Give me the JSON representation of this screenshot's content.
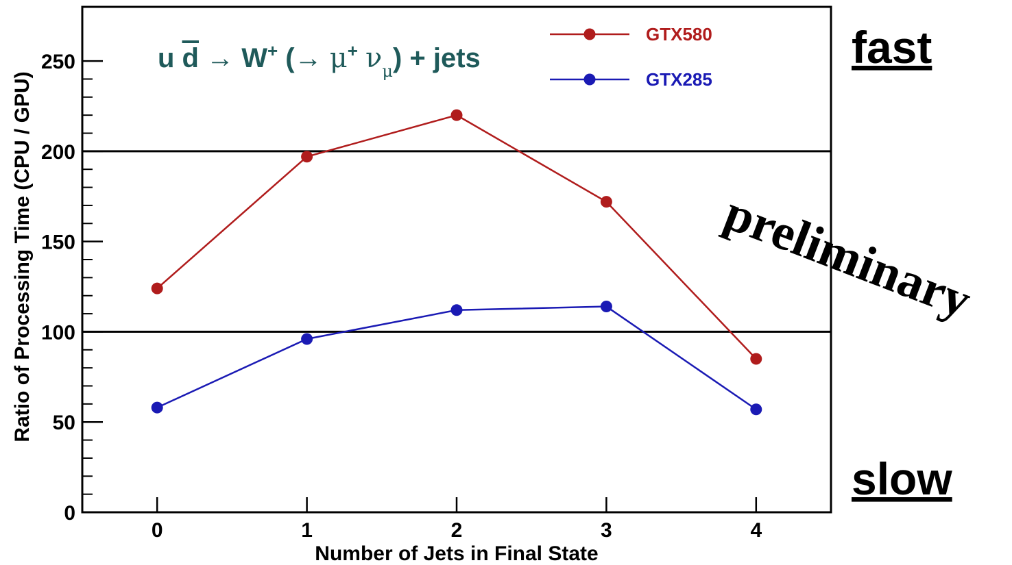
{
  "chart_data": {
    "type": "line",
    "title": {
      "parts": [
        {
          "text": "u ",
          "style": "normal"
        },
        {
          "text": "d",
          "style": "overline"
        },
        {
          "text": " → W",
          "style": "normal"
        },
        {
          "text": "+",
          "style": "sup"
        },
        {
          "text": " (→ ",
          "style": "normal"
        },
        {
          "text": "μ",
          "style": "greek"
        },
        {
          "text": "+",
          "style": "sup"
        },
        {
          "text": " ",
          "style": "normal"
        },
        {
          "text": "ν",
          "style": "greek"
        },
        {
          "text": "μ",
          "style": "sub-greek"
        },
        {
          "text": ") + jets",
          "style": "normal"
        }
      ]
    },
    "xlabel": "Number of Jets in Final State",
    "ylabel": "Ratio of Processing Time (CPU / GPU)",
    "x": [
      0,
      1,
      2,
      3,
      4
    ],
    "x_ticks": [
      "0",
      "1",
      "2",
      "3",
      "4"
    ],
    "xlim": [
      -0.5,
      4.5
    ],
    "ylim": [
      0,
      280
    ],
    "y_ticks": [
      "0",
      "50",
      "100",
      "150",
      "200",
      "250"
    ],
    "reference_lines": [
      100,
      200
    ],
    "series": [
      {
        "name": "GTX580",
        "color": "#b01c1c",
        "values": [
          124,
          197,
          220,
          172,
          85
        ]
      },
      {
        "name": "GTX285",
        "color": "#1a1ab4",
        "values": [
          58,
          96,
          112,
          114,
          57
        ]
      }
    ],
    "legend_position": "top-right",
    "annotations": {
      "fast": "fast",
      "slow": "slow",
      "preliminary": "preliminary"
    }
  }
}
